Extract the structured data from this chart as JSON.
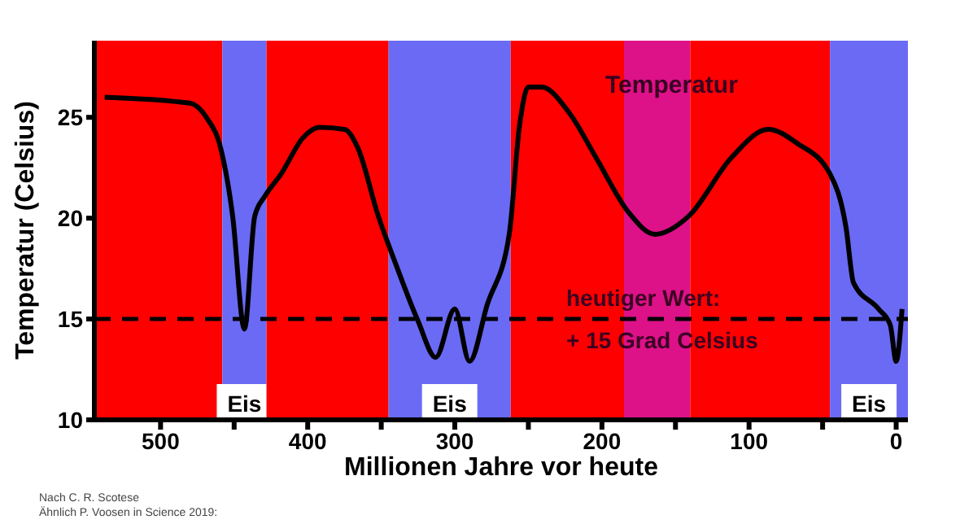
{
  "chart_data": {
    "type": "line",
    "xlabel": "Millionen Jahre vor heute",
    "ylabel": "Temperatur (Celsius)",
    "x": [
      538,
      480,
      468,
      460,
      451,
      443,
      436,
      429,
      418,
      403,
      392,
      375,
      366,
      352,
      340,
      325,
      313,
      300,
      290,
      278,
      263,
      256,
      250,
      241,
      222,
      204,
      182,
      164,
      141,
      112,
      87,
      67,
      45,
      34,
      29,
      12,
      4,
      0,
      -4
    ],
    "series": [
      {
        "name": "Temperatur",
        "color": "#000000",
        "values": [
          26.0,
          25.7,
          24.9,
          23.7,
          20.1,
          14.5,
          20.1,
          21.1,
          22.2,
          24.0,
          24.5,
          24.4,
          23.5,
          20.1,
          17.7,
          14.9,
          13.1,
          15.5,
          12.9,
          15.7,
          19.2,
          24.6,
          26.5,
          26.5,
          25.2,
          23.0,
          20.3,
          19.2,
          20.1,
          23.0,
          24.4,
          23.7,
          22.2,
          19.5,
          16.8,
          15.5,
          14.7,
          12.9,
          15.5
        ]
      }
    ],
    "xlim": [
      545,
      -8
    ],
    "xticks": [
      500,
      {
        "value": 450,
        "label": null
      },
      400,
      {
        "value": 350,
        "label": null
      },
      300,
      {
        "value": 250,
        "label": null
      },
      200,
      {
        "value": 150,
        "label": null
      },
      100,
      {
        "value": 50,
        "label": null
      },
      0
    ],
    "ylim": [
      10,
      28.8
    ],
    "yticks": [
      10,
      15,
      20,
      25
    ],
    "grid": false,
    "legend": false,
    "line_style": "solid",
    "marker": "none",
    "ref_lines": [
      {
        "axis": "y",
        "value": 15,
        "label": "heutiger Wert:\n+ 15 Grad Celsius",
        "color": "#000000",
        "line_style": "dashed"
      }
    ],
    "bands": [
      {
        "axis": "x",
        "from": 545,
        "to": 458,
        "label": null,
        "color": "#ff0000"
      },
      {
        "axis": "x",
        "from": 458,
        "to": 428,
        "label": "Eis",
        "color": "#6a6af5"
      },
      {
        "axis": "x",
        "from": 428,
        "to": 345,
        "label": null,
        "color": "#ff0000"
      },
      {
        "axis": "x",
        "from": 345,
        "to": 262,
        "label": "Eis",
        "color": "#6a6af5"
      },
      {
        "axis": "x",
        "from": 262,
        "to": 185,
        "label": null,
        "color": "#ff0000"
      },
      {
        "axis": "x",
        "from": 185,
        "to": 140,
        "label": null,
        "color": "#dd1188"
      },
      {
        "axis": "x",
        "from": 140,
        "to": 45,
        "label": null,
        "color": "#ff0000"
      },
      {
        "axis": "x",
        "from": 45,
        "to": -8,
        "label": "Eis",
        "color": "#6a6af5"
      }
    ],
    "annotations": [
      "Nach C. R. Scotese",
      "Ähnlich P. Voosen in Science 2019:"
    ]
  }
}
